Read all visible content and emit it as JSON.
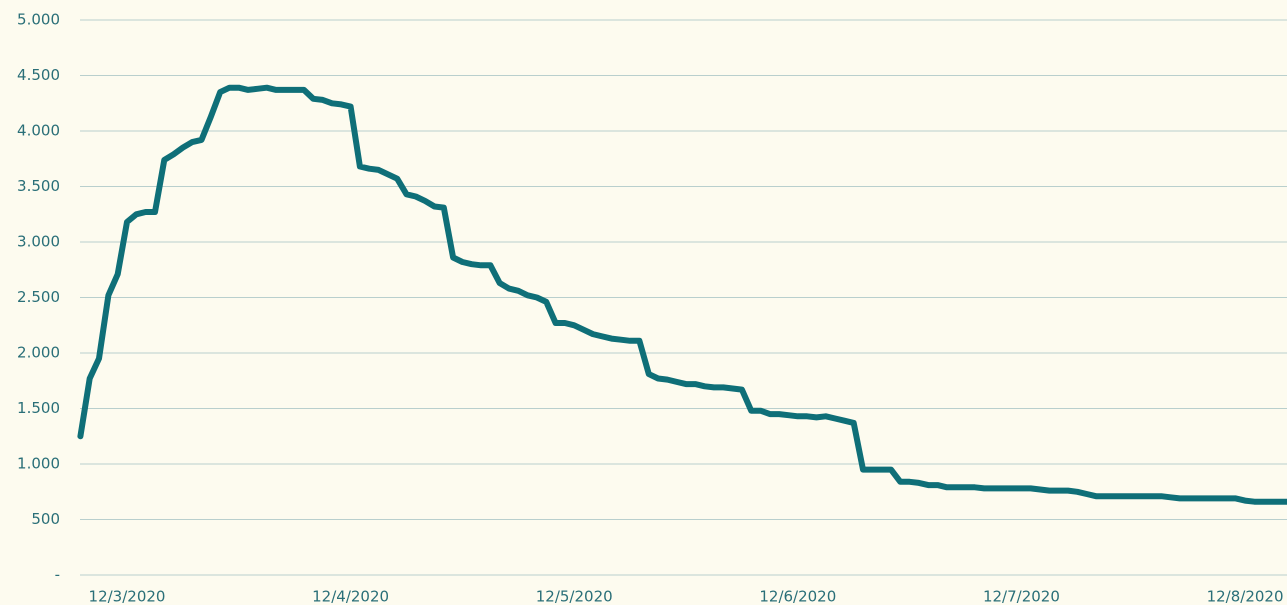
{
  "chart_data": {
    "type": "line",
    "categories": [
      null,
      null,
      null,
      null,
      null,
      "12/3/2020",
      null,
      null,
      null,
      null,
      null,
      null,
      null,
      null,
      null,
      null,
      null,
      null,
      null,
      null,
      null,
      null,
      null,
      null,
      null,
      null,
      null,
      null,
      null,
      "12/4/2020",
      null,
      null,
      null,
      null,
      null,
      null,
      null,
      null,
      null,
      null,
      null,
      null,
      null,
      null,
      null,
      null,
      null,
      null,
      null,
      null,
      null,
      null,
      null,
      "12/5/2020",
      null,
      null,
      null,
      null,
      null,
      null,
      null,
      null,
      null,
      null,
      null,
      null,
      null,
      null,
      null,
      null,
      null,
      null,
      null,
      null,
      null,
      null,
      null,
      "12/6/2020",
      null,
      null,
      null,
      null,
      null,
      null,
      null,
      null,
      null,
      null,
      null,
      null,
      null,
      null,
      null,
      null,
      null,
      null,
      null,
      null,
      null,
      null,
      null,
      "12/7/2020",
      null,
      null,
      null,
      null,
      null,
      null,
      null,
      null,
      null,
      null,
      null,
      null,
      null,
      null,
      null,
      null,
      null,
      null,
      null,
      null,
      null,
      null,
      null,
      "12/8/2020",
      null,
      null,
      null,
      null,
      null
    ],
    "values": [
      1250,
      1770,
      1950,
      2520,
      2710,
      3180,
      3250,
      3270,
      3270,
      3740,
      3790,
      3850,
      3900,
      3920,
      4130,
      4350,
      4390,
      4390,
      4370,
      4380,
      4390,
      4370,
      4370,
      4370,
      4370,
      4290,
      4280,
      4250,
      4240,
      4220,
      3680,
      3660,
      3650,
      3610,
      3570,
      3430,
      3410,
      3370,
      3320,
      3310,
      2860,
      2820,
      2800,
      2790,
      2790,
      2630,
      2580,
      2560,
      2520,
      2500,
      2460,
      2270,
      2270,
      2250,
      2210,
      2170,
      2150,
      2130,
      2120,
      2110,
      2110,
      1810,
      1770,
      1760,
      1740,
      1720,
      1720,
      1700,
      1690,
      1690,
      1680,
      1670,
      1480,
      1480,
      1450,
      1450,
      1440,
      1430,
      1430,
      1420,
      1430,
      1410,
      1390,
      1370,
      950,
      950,
      950,
      950,
      840,
      840,
      830,
      810,
      810,
      790,
      790,
      790,
      790,
      780,
      780,
      780,
      780,
      780,
      780,
      770,
      760,
      760,
      760,
      750,
      730,
      710,
      710,
      710,
      710,
      710,
      710,
      710,
      710,
      700,
      690,
      690,
      690,
      690,
      690,
      690,
      690,
      670,
      660,
      660,
      660,
      660,
      660
    ],
    "color": "#0f6f78",
    "ylim": [
      0,
      5000
    ],
    "yticks": [
      {
        "value": 0,
        "label": "-"
      },
      500,
      {
        "value": 1000,
        "label": "1.000"
      },
      {
        "value": 1500,
        "label": "1.500"
      },
      {
        "value": 2000,
        "label": "2.000"
      },
      {
        "value": 2500,
        "label": "2.500"
      },
      {
        "value": 3000,
        "label": "3.000"
      },
      {
        "value": 3500,
        "label": "3.500"
      },
      {
        "value": 4000,
        "label": "4.000"
      },
      {
        "value": 4500,
        "label": "4.500"
      },
      {
        "value": 5000,
        "label": "5.000"
      }
    ],
    "grid": true
  }
}
